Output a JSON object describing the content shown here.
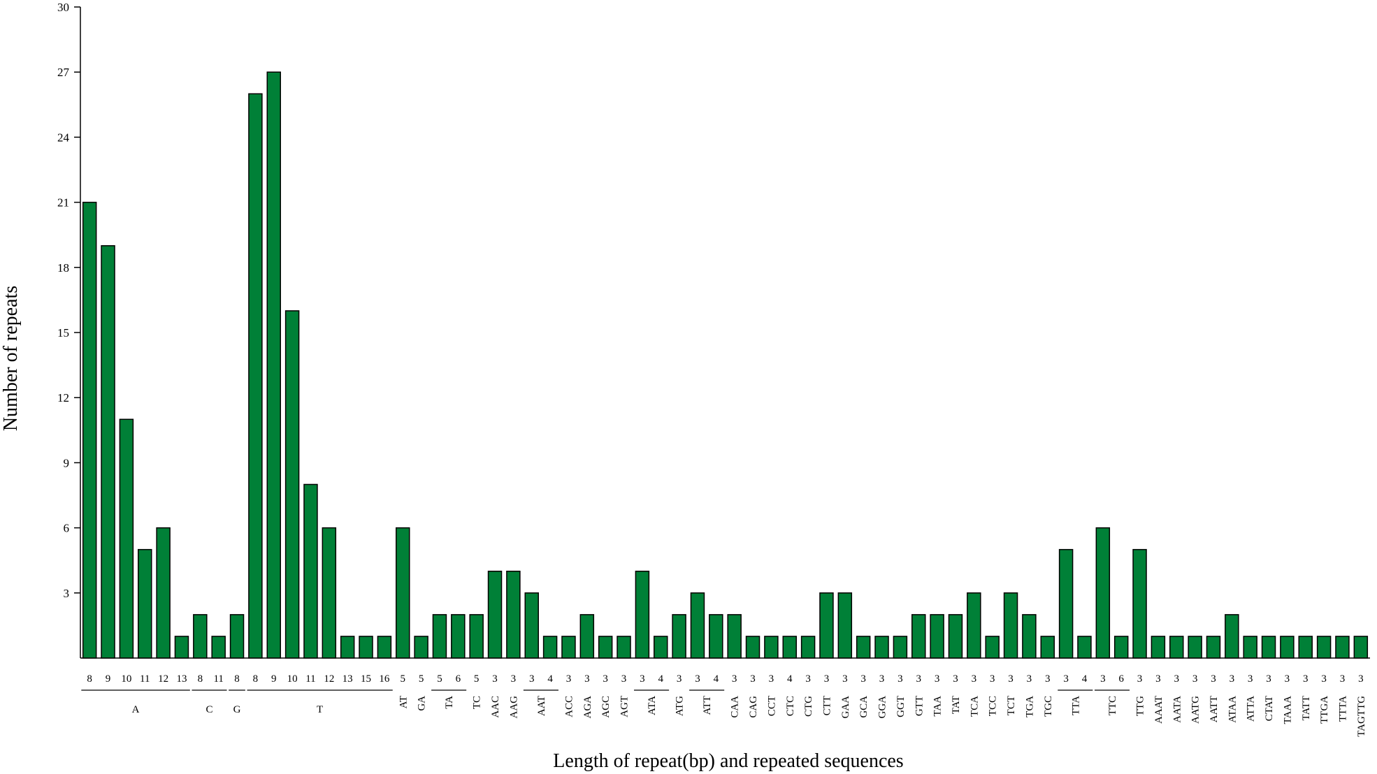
{
  "chart_data": {
    "type": "bar",
    "xlabel": "Length of repeat(bp) and repeated sequences",
    "ylabel": "Number of repeats",
    "ylim": [
      0,
      30
    ],
    "yticks": [
      3,
      6,
      9,
      12,
      15,
      18,
      21,
      24,
      27,
      30
    ],
    "grid": false,
    "legend": "none",
    "bar_color": "#008037",
    "bars": [
      {
        "length": "8",
        "value": 21
      },
      {
        "length": "9",
        "value": 19
      },
      {
        "length": "10",
        "value": 11
      },
      {
        "length": "11",
        "value": 5
      },
      {
        "length": "12",
        "value": 6
      },
      {
        "length": "13",
        "value": 1
      },
      {
        "length": "8",
        "value": 2
      },
      {
        "length": "11",
        "value": 1
      },
      {
        "length": "8",
        "value": 2
      },
      {
        "length": "8",
        "value": 26
      },
      {
        "length": "9",
        "value": 27
      },
      {
        "length": "10",
        "value": 16
      },
      {
        "length": "11",
        "value": 8
      },
      {
        "length": "12",
        "value": 6
      },
      {
        "length": "13",
        "value": 1
      },
      {
        "length": "15",
        "value": 1
      },
      {
        "length": "16",
        "value": 1
      },
      {
        "length": "5",
        "value": 6
      },
      {
        "length": "5",
        "value": 1
      },
      {
        "length": "5",
        "value": 2
      },
      {
        "length": "6",
        "value": 2
      },
      {
        "length": "5",
        "value": 2
      },
      {
        "length": "3",
        "value": 4
      },
      {
        "length": "3",
        "value": 4
      },
      {
        "length": "3",
        "value": 3
      },
      {
        "length": "4",
        "value": 1
      },
      {
        "length": "3",
        "value": 1
      },
      {
        "length": "3",
        "value": 2
      },
      {
        "length": "3",
        "value": 1
      },
      {
        "length": "3",
        "value": 1
      },
      {
        "length": "3",
        "value": 4
      },
      {
        "length": "4",
        "value": 1
      },
      {
        "length": "3",
        "value": 2
      },
      {
        "length": "3",
        "value": 3
      },
      {
        "length": "4",
        "value": 2
      },
      {
        "length": "3",
        "value": 2
      },
      {
        "length": "3",
        "value": 1
      },
      {
        "length": "3",
        "value": 1
      },
      {
        "length": "4",
        "value": 1
      },
      {
        "length": "3",
        "value": 1
      },
      {
        "length": "3",
        "value": 3
      },
      {
        "length": "3",
        "value": 3
      },
      {
        "length": "3",
        "value": 1
      },
      {
        "length": "3",
        "value": 1
      },
      {
        "length": "3",
        "value": 1
      },
      {
        "length": "3",
        "value": 2
      },
      {
        "length": "3",
        "value": 2
      },
      {
        "length": "3",
        "value": 2
      },
      {
        "length": "3",
        "value": 3
      },
      {
        "length": "3",
        "value": 1
      },
      {
        "length": "3",
        "value": 3
      },
      {
        "length": "3",
        "value": 2
      },
      {
        "length": "3",
        "value": 1
      },
      {
        "length": "3",
        "value": 5
      },
      {
        "length": "4",
        "value": 1
      },
      {
        "length": "3",
        "value": 6
      },
      {
        "length": "6",
        "value": 1
      },
      {
        "length": "3",
        "value": 5
      },
      {
        "length": "3",
        "value": 1
      },
      {
        "length": "3",
        "value": 1
      },
      {
        "length": "3",
        "value": 1
      },
      {
        "length": "3",
        "value": 1
      },
      {
        "length": "3",
        "value": 2
      },
      {
        "length": "3",
        "value": 1
      },
      {
        "length": "3",
        "value": 1
      },
      {
        "length": "3",
        "value": 1
      },
      {
        "length": "3",
        "value": 1
      },
      {
        "length": "3",
        "value": 1
      },
      {
        "length": "3",
        "value": 1
      },
      {
        "length": "3",
        "value": 1
      }
    ],
    "groups": [
      {
        "label": "A",
        "start": 0,
        "end": 5,
        "line": true
      },
      {
        "label": "C",
        "start": 6,
        "end": 7,
        "line": true
      },
      {
        "label": "G",
        "start": 8,
        "end": 8,
        "line": true
      },
      {
        "label": "T",
        "start": 9,
        "end": 16,
        "line": true
      },
      {
        "label": "AT",
        "start": 17,
        "end": 17,
        "line": false
      },
      {
        "label": "GA",
        "start": 18,
        "end": 18,
        "line": false
      },
      {
        "label": "TA",
        "start": 19,
        "end": 20,
        "line": true
      },
      {
        "label": "TC",
        "start": 21,
        "end": 21,
        "line": false
      },
      {
        "label": "AAC",
        "start": 22,
        "end": 22,
        "line": false
      },
      {
        "label": "AAG",
        "start": 23,
        "end": 23,
        "line": false
      },
      {
        "label": "AAT",
        "start": 24,
        "end": 25,
        "line": true
      },
      {
        "label": "ACC",
        "start": 26,
        "end": 26,
        "line": false
      },
      {
        "label": "AGA",
        "start": 27,
        "end": 27,
        "line": false
      },
      {
        "label": "AGC",
        "start": 28,
        "end": 28,
        "line": false
      },
      {
        "label": "AGT",
        "start": 29,
        "end": 29,
        "line": false
      },
      {
        "label": "ATA",
        "start": 30,
        "end": 31,
        "line": true
      },
      {
        "label": "ATG",
        "start": 32,
        "end": 32,
        "line": false
      },
      {
        "label": "ATT",
        "start": 33,
        "end": 34,
        "line": true
      },
      {
        "label": "CAA",
        "start": 35,
        "end": 35,
        "line": false
      },
      {
        "label": "CAG",
        "start": 36,
        "end": 36,
        "line": false
      },
      {
        "label": "CCT",
        "start": 37,
        "end": 37,
        "line": false
      },
      {
        "label": "CTC",
        "start": 38,
        "end": 38,
        "line": false
      },
      {
        "label": "CTG",
        "start": 39,
        "end": 39,
        "line": false
      },
      {
        "label": "CTT",
        "start": 40,
        "end": 40,
        "line": false
      },
      {
        "label": "GAA",
        "start": 41,
        "end": 41,
        "line": false
      },
      {
        "label": "GCA",
        "start": 42,
        "end": 42,
        "line": false
      },
      {
        "label": "GGA",
        "start": 43,
        "end": 43,
        "line": false
      },
      {
        "label": "GGT",
        "start": 44,
        "end": 44,
        "line": false
      },
      {
        "label": "GTT",
        "start": 45,
        "end": 45,
        "line": false
      },
      {
        "label": "TAA",
        "start": 46,
        "end": 46,
        "line": false
      },
      {
        "label": "TAT",
        "start": 47,
        "end": 47,
        "line": false
      },
      {
        "label": "TCA",
        "start": 48,
        "end": 48,
        "line": false
      },
      {
        "label": "TCC",
        "start": 49,
        "end": 49,
        "line": false
      },
      {
        "label": "TCT",
        "start": 50,
        "end": 50,
        "line": false
      },
      {
        "label": "TGA",
        "start": 51,
        "end": 51,
        "line": false
      },
      {
        "label": "TGC",
        "start": 52,
        "end": 52,
        "line": false
      },
      {
        "label": "TTA",
        "start": 53,
        "end": 54,
        "line": true
      },
      {
        "label": "TTC",
        "start": 55,
        "end": 56,
        "line": true
      },
      {
        "label": "TTG",
        "start": 57,
        "end": 57,
        "line": false
      },
      {
        "label": "AAAT",
        "start": 58,
        "end": 58,
        "line": false
      },
      {
        "label": "AATA",
        "start": 59,
        "end": 59,
        "line": false
      },
      {
        "label": "AATG",
        "start": 60,
        "end": 60,
        "line": false
      },
      {
        "label": "AATT",
        "start": 61,
        "end": 61,
        "line": false
      },
      {
        "label": "ATAA",
        "start": 62,
        "end": 62,
        "line": false
      },
      {
        "label": "ATTA",
        "start": 63,
        "end": 63,
        "line": false
      },
      {
        "label": "CTAT",
        "start": 64,
        "end": 64,
        "line": false
      },
      {
        "label": "TAAA",
        "start": 65,
        "end": 65,
        "line": false
      },
      {
        "label": "TATT",
        "start": 66,
        "end": 66,
        "line": false
      },
      {
        "label": "TTGA",
        "start": 67,
        "end": 67,
        "line": false
      },
      {
        "label": "TTTA",
        "start": 68,
        "end": 68,
        "line": false
      },
      {
        "label": "TAGTTG",
        "start": 69,
        "end": 69,
        "line": false
      }
    ]
  }
}
